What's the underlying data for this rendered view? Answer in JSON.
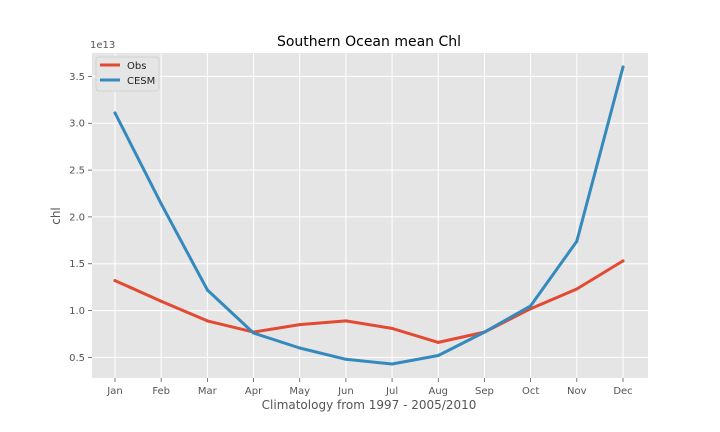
{
  "chart_data": {
    "type": "line",
    "title": "Southern Ocean mean Chl",
    "xlabel": "Climatology from 1997 - 2005/2010",
    "ylabel": "chl",
    "y_offset_label": "1e13",
    "categories": [
      "Jan",
      "Feb",
      "Mar",
      "Apr",
      "May",
      "Jun",
      "Jul",
      "Aug",
      "Sep",
      "Oct",
      "Nov",
      "Dec"
    ],
    "yticks": [
      "0.5",
      "1.0",
      "1.5",
      "2.0",
      "2.5",
      "3.0",
      "3.5"
    ],
    "ylim": [
      0.28,
      3.75
    ],
    "y_unit_multiplier": 10000000000000.0,
    "grid": true,
    "legend_position": "top-left",
    "series": [
      {
        "name": "Obs",
        "color": "#E24A33",
        "values": [
          1.32,
          1.1,
          0.89,
          0.77,
          0.85,
          0.89,
          0.81,
          0.66,
          0.77,
          1.02,
          1.23,
          1.53
        ]
      },
      {
        "name": "CESM",
        "color": "#348ABD",
        "values": [
          3.11,
          2.14,
          1.22,
          0.76,
          0.6,
          0.48,
          0.43,
          0.52,
          0.77,
          1.05,
          1.74,
          3.6
        ]
      }
    ]
  }
}
